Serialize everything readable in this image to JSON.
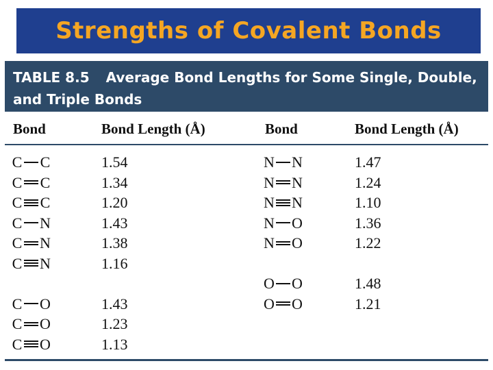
{
  "slide_title": "Strengths of Covalent Bonds",
  "table": {
    "number": "TABLE 8.5",
    "caption": "Average Bond Lengths for Some Single, Double, and Triple Bonds",
    "headers": [
      "Bond",
      "Bond Length (Å)",
      "Bond",
      "Bond Length (Å)"
    ],
    "left_rows": [
      {
        "a": "C",
        "b": "C",
        "order": 1,
        "length": "1.54"
      },
      {
        "a": "C",
        "b": "C",
        "order": 2,
        "length": "1.34"
      },
      {
        "a": "C",
        "b": "C",
        "order": 3,
        "length": "1.20"
      },
      {
        "a": "C",
        "b": "N",
        "order": 1,
        "length": "1.43"
      },
      {
        "a": "C",
        "b": "N",
        "order": 2,
        "length": "1.38"
      },
      {
        "a": "C",
        "b": "N",
        "order": 3,
        "length": "1.16"
      },
      null,
      {
        "a": "C",
        "b": "O",
        "order": 1,
        "length": "1.43"
      },
      {
        "a": "C",
        "b": "O",
        "order": 2,
        "length": "1.23"
      },
      {
        "a": "C",
        "b": "O",
        "order": 3,
        "length": "1.13"
      }
    ],
    "right_rows": [
      {
        "a": "N",
        "b": "N",
        "order": 1,
        "length": "1.47"
      },
      {
        "a": "N",
        "b": "N",
        "order": 2,
        "length": "1.24"
      },
      {
        "a": "N",
        "b": "N",
        "order": 3,
        "length": "1.10"
      },
      {
        "a": "N",
        "b": "O",
        "order": 1,
        "length": "1.36"
      },
      {
        "a": "N",
        "b": "O",
        "order": 2,
        "length": "1.22"
      },
      null,
      {
        "a": "O",
        "b": "O",
        "order": 1,
        "length": "1.48"
      },
      {
        "a": "O",
        "b": "O",
        "order": 2,
        "length": "1.21"
      }
    ]
  }
}
